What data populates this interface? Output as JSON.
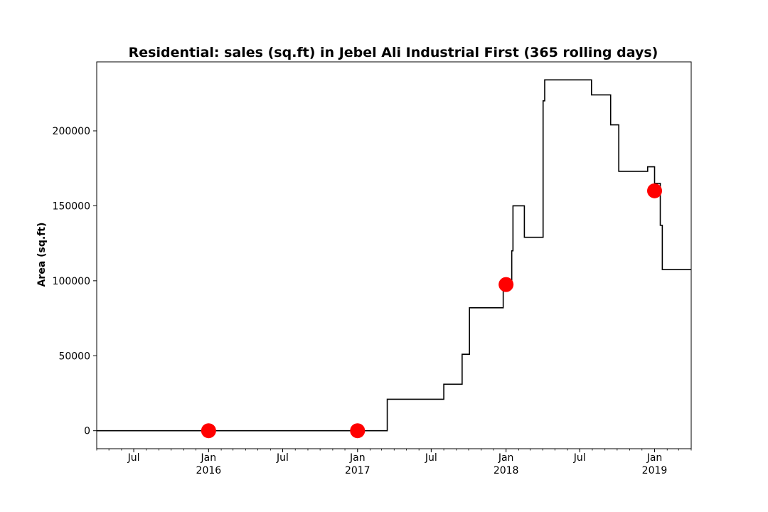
{
  "chart_data": {
    "type": "line",
    "title": "Residential: sales (sq.ft) in Jebel Ali Industrial First (365 rolling days)",
    "xlabel": "",
    "ylabel": "Area (sq.ft)",
    "xlim": [
      "2015-04-01",
      "2019-04-01"
    ],
    "ylim": [
      -12000,
      246000
    ],
    "yticks": [
      0,
      50000,
      100000,
      150000,
      200000
    ],
    "ytick_labels": [
      "0",
      "50000",
      "100000",
      "150000",
      "200000"
    ],
    "xticks": [
      {
        "date": "2015-07-01",
        "label": "Jul",
        "sublabel": ""
      },
      {
        "date": "2016-01-01",
        "label": "Jan",
        "sublabel": "2016"
      },
      {
        "date": "2016-07-01",
        "label": "Jul",
        "sublabel": ""
      },
      {
        "date": "2017-01-01",
        "label": "Jan",
        "sublabel": "2017"
      },
      {
        "date": "2017-07-01",
        "label": "Jul",
        "sublabel": ""
      },
      {
        "date": "2018-01-01",
        "label": "Jan",
        "sublabel": "2018"
      },
      {
        "date": "2018-07-01",
        "label": "Jul",
        "sublabel": ""
      },
      {
        "date": "2019-01-01",
        "label": "Jan",
        "sublabel": "2019"
      }
    ],
    "grid": false,
    "line_color": "#000000",
    "marker_color": "#ff0000",
    "series": [
      {
        "style": "step",
        "points": [
          [
            "2015-04-01",
            0
          ],
          [
            "2017-03-15",
            0
          ],
          [
            "2017-03-15",
            21000
          ],
          [
            "2017-08-01",
            21000
          ],
          [
            "2017-08-01",
            31000
          ],
          [
            "2017-09-15",
            31000
          ],
          [
            "2017-09-15",
            51000
          ],
          [
            "2017-10-03",
            51000
          ],
          [
            "2017-10-03",
            82000
          ],
          [
            "2017-12-25",
            82000
          ],
          [
            "2017-12-25",
            97000
          ],
          [
            "2018-01-15",
            97000
          ],
          [
            "2018-01-15",
            120000
          ],
          [
            "2018-01-18",
            120000
          ],
          [
            "2018-01-18",
            150000
          ],
          [
            "2018-02-15",
            150000
          ],
          [
            "2018-02-15",
            129000
          ],
          [
            "2018-04-02",
            129000
          ],
          [
            "2018-04-02",
            220000
          ],
          [
            "2018-04-06",
            220000
          ],
          [
            "2018-04-06",
            234000
          ],
          [
            "2018-07-30",
            234000
          ],
          [
            "2018-07-30",
            224000
          ],
          [
            "2018-09-15",
            224000
          ],
          [
            "2018-09-15",
            204000
          ],
          [
            "2018-10-05",
            204000
          ],
          [
            "2018-10-05",
            173000
          ],
          [
            "2018-12-15",
            173000
          ],
          [
            "2018-12-15",
            176000
          ],
          [
            "2019-01-01",
            176000
          ],
          [
            "2019-01-01",
            165000
          ],
          [
            "2019-01-15",
            165000
          ],
          [
            "2019-01-15",
            137000
          ],
          [
            "2019-01-20",
            137000
          ],
          [
            "2019-01-20",
            107500
          ],
          [
            "2019-04-01",
            107500
          ]
        ]
      },
      {
        "style": "markers",
        "points": [
          [
            "2016-01-01",
            0
          ],
          [
            "2017-01-01",
            0
          ],
          [
            "2018-01-01",
            97500
          ],
          [
            "2019-01-01",
            160000
          ]
        ]
      }
    ]
  }
}
